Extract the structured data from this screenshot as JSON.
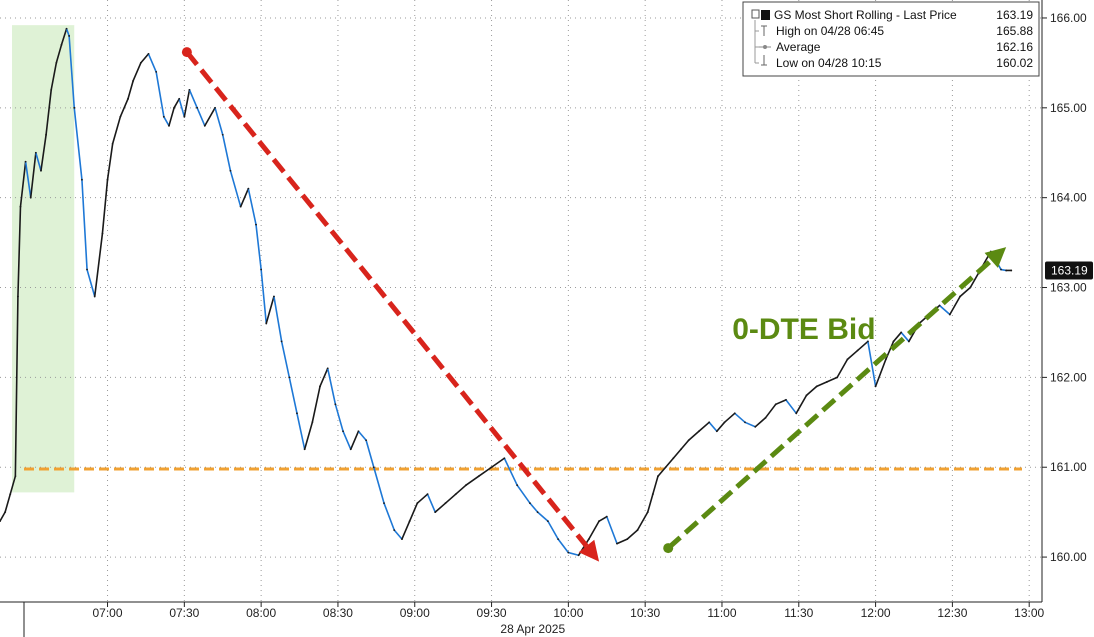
{
  "chart_data": {
    "type": "line",
    "ylim": [
      159.5,
      166.2
    ],
    "yticks": [
      160.0,
      161.0,
      162.0,
      163.0,
      164.0,
      165.0,
      166.0
    ],
    "xlim": [
      "06:18",
      "13:05"
    ],
    "xticks": [
      "07:00",
      "07:30",
      "08:00",
      "08:30",
      "09:00",
      "09:30",
      "10:00",
      "10:30",
      "11:00",
      "11:30",
      "12:00",
      "12:30",
      "13:00"
    ],
    "date_label": "28 Apr 2025",
    "grid": true,
    "legend_position": "top-right",
    "legend": {
      "title": "GS Most Short Rolling - Last Price",
      "title_value": "163.19",
      "entries": [
        {
          "label": "High on 04/28 06:45",
          "value": "165.88"
        },
        {
          "label": "Average",
          "value": "162.16"
        },
        {
          "label": "Low on 04/28 10:15",
          "value": "160.02"
        }
      ]
    },
    "last_price": 163.19,
    "last_price_label": "163.19",
    "series": [
      {
        "color": "#1a1a1a",
        "up_color": "#1a1a1a",
        "down_color": "#1e78d6",
        "x": [
          "06:18",
          "06:20",
          "06:22",
          "06:24",
          "06:25",
          "06:26",
          "06:28",
          "06:30",
          "06:32",
          "06:34",
          "06:36",
          "06:38",
          "06:40",
          "06:42",
          "06:44",
          "06:45",
          "06:47",
          "06:50",
          "06:52",
          "06:55",
          "06:58",
          "07:00",
          "07:02",
          "07:05",
          "07:08",
          "07:10",
          "07:13",
          "07:16",
          "07:19",
          "07:22",
          "07:24",
          "07:26",
          "07:28",
          "07:30",
          "07:32",
          "07:35",
          "07:38",
          "07:42",
          "07:45",
          "07:48",
          "07:52",
          "07:55",
          "07:58",
          "08:00",
          "08:02",
          "08:05",
          "08:08",
          "08:11",
          "08:14",
          "08:17",
          "08:20",
          "08:23",
          "08:26",
          "08:29",
          "08:32",
          "08:35",
          "08:38",
          "08:41",
          "08:44",
          "08:48",
          "08:52",
          "08:55",
          "08:58",
          "09:01",
          "09:05",
          "09:08",
          "09:12",
          "09:16",
          "09:20",
          "09:25",
          "09:30",
          "09:35",
          "09:40",
          "09:45",
          "09:48",
          "09:52",
          "09:56",
          "10:00",
          "10:04",
          "10:08",
          "10:12",
          "10:15",
          "10:19",
          "10:23",
          "10:27",
          "10:31",
          "10:33",
          "10:35",
          "10:38",
          "10:41",
          "10:44",
          "10:47",
          "10:51",
          "10:55",
          "10:58",
          "11:01",
          "11:05",
          "11:09",
          "11:13",
          "11:17",
          "11:21",
          "11:25",
          "11:29",
          "11:33",
          "11:37",
          "11:41",
          "11:45",
          "11:49",
          "11:53",
          "11:57",
          "12:00",
          "12:04",
          "12:07",
          "12:10",
          "12:13",
          "12:17",
          "12:21",
          "12:25",
          "12:29",
          "12:33",
          "12:37",
          "12:41",
          "12:45",
          "12:47",
          "12:49",
          "12:51",
          "12:53"
        ],
        "y": [
          160.4,
          160.5,
          160.7,
          160.9,
          162.9,
          163.9,
          164.4,
          164.0,
          164.5,
          164.3,
          164.7,
          165.2,
          165.5,
          165.7,
          165.88,
          165.8,
          165.0,
          164.2,
          163.2,
          162.9,
          163.6,
          164.2,
          164.6,
          164.9,
          165.1,
          165.3,
          165.5,
          165.6,
          165.4,
          164.9,
          164.8,
          165.0,
          165.1,
          164.9,
          165.2,
          165.0,
          164.8,
          165.0,
          164.7,
          164.3,
          163.9,
          164.1,
          163.7,
          163.2,
          162.6,
          162.9,
          162.4,
          162.0,
          161.6,
          161.2,
          161.5,
          161.9,
          162.1,
          161.7,
          161.4,
          161.2,
          161.4,
          161.3,
          161.0,
          160.6,
          160.3,
          160.2,
          160.4,
          160.6,
          160.7,
          160.5,
          160.6,
          160.7,
          160.8,
          160.9,
          161.0,
          161.1,
          160.8,
          160.6,
          160.5,
          160.4,
          160.2,
          160.05,
          160.02,
          160.2,
          160.4,
          160.45,
          160.15,
          160.2,
          160.3,
          160.5,
          160.7,
          160.9,
          161.0,
          161.1,
          161.2,
          161.3,
          161.4,
          161.5,
          161.4,
          161.5,
          161.6,
          161.5,
          161.45,
          161.55,
          161.7,
          161.75,
          161.6,
          161.8,
          161.9,
          161.95,
          162.0,
          162.2,
          162.3,
          162.4,
          161.9,
          162.2,
          162.4,
          162.5,
          162.4,
          162.6,
          162.7,
          162.8,
          162.7,
          162.9,
          163.0,
          163.2,
          163.4,
          163.3,
          163.2,
          163.19,
          163.19
        ]
      }
    ],
    "reference_lines": [
      {
        "type": "horizontal",
        "y": 160.98,
        "color": "#f0a132",
        "style": "dashed"
      }
    ],
    "shaded_regions": [
      {
        "x_start": "06:18",
        "x_end": "06:47",
        "y_min": 160.72,
        "y_max": 165.92,
        "color": "#dff2d6"
      }
    ],
    "arrows": [
      {
        "from": {
          "x": "07:31",
          "y": 165.62
        },
        "to": {
          "x": "10:12",
          "y": 159.95
        },
        "color": "#d8241c",
        "style": "dashed"
      },
      {
        "from": {
          "x": "10:39",
          "y": 160.1
        },
        "to": {
          "x": "12:51",
          "y": 163.45
        },
        "color": "#5b8a12",
        "style": "dashed"
      }
    ],
    "annotations": [
      {
        "text": "0-DTE Bid",
        "x": "11:04",
        "y": 162.55,
        "color": "#5b8a12"
      }
    ]
  }
}
